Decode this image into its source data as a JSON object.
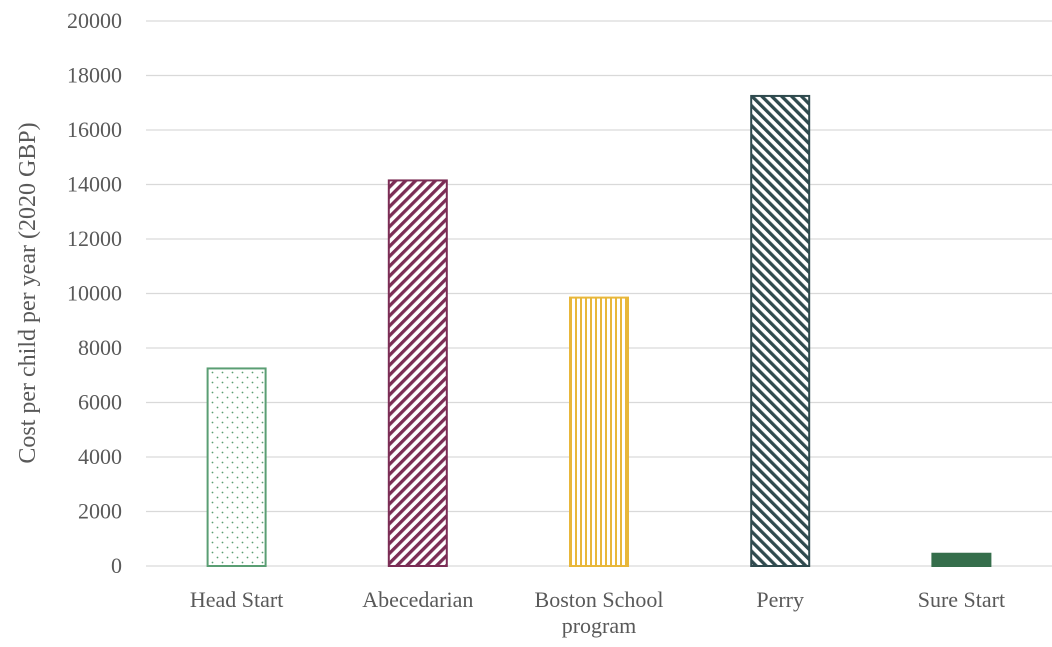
{
  "chart_data": {
    "type": "bar",
    "categories": [
      [
        "Head Start"
      ],
      [
        "Abecedarian"
      ],
      [
        "Boston School",
        "program"
      ],
      [
        "Perry"
      ],
      [
        "Sure Start"
      ]
    ],
    "values": [
      7250,
      14150,
      9850,
      17250,
      450
    ],
    "title": "",
    "xlabel": "",
    "ylabel": "Cost per child per year (2020 GBP)",
    "ylim": [
      0,
      20000
    ],
    "yticks": [
      0,
      2000,
      4000,
      6000,
      8000,
      10000,
      12000,
      14000,
      16000,
      18000,
      20000
    ],
    "grid": true,
    "legend": "none",
    "bar_styles": [
      {
        "pattern": "dots",
        "color": "#5a9e73"
      },
      {
        "pattern": "diagonal-right",
        "color": "#7b2d55"
      },
      {
        "pattern": "vertical",
        "color": "#e8b73a"
      },
      {
        "pattern": "diagonal-left",
        "color": "#2f4a4e"
      },
      {
        "pattern": "solid",
        "color": "#356e4b"
      }
    ]
  }
}
